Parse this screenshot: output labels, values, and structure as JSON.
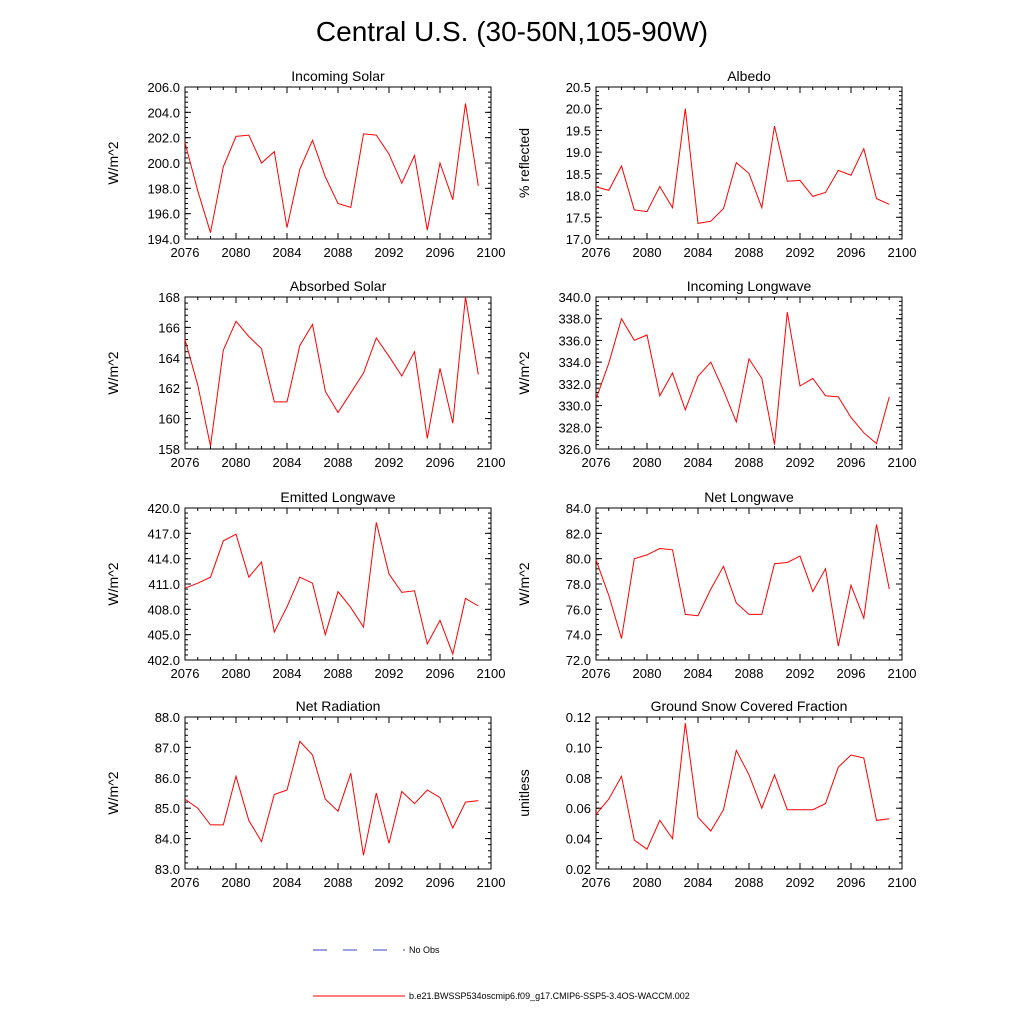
{
  "title": "Central U.S. (30-50N,105-90W)",
  "colors": {
    "series": "#ff0000",
    "obs": "#3344cc",
    "axis": "#000000"
  },
  "legend": {
    "obs_label": "No Obs",
    "model_label": "b.e21.BWSSP534oscmip6.f09_g17.CMIP6-SSP5-3.4OS-WACCM.002"
  },
  "chart_data": [
    {
      "type": "line",
      "title": "Incoming Solar",
      "xlabel": "",
      "ylabel": "W/m^2",
      "xlim": [
        2076,
        2100
      ],
      "ylim": [
        194,
        206
      ],
      "x_ticks": [
        2076,
        2080,
        2084,
        2088,
        2092,
        2096,
        2100
      ],
      "x_tick_labels": [
        "2076",
        "2080",
        "2084",
        "2088",
        "2092",
        "2096",
        "2100"
      ],
      "y_ticks": [
        194,
        196,
        198,
        200,
        202,
        204,
        206
      ],
      "y_tick_labels": [
        "194.0",
        "196.0",
        "198.0",
        "200.0",
        "202.0",
        "204.0",
        "206.0"
      ],
      "y_minor_step": 0.4,
      "series": [
        {
          "name": "b.e21.BWSSP534oscmip6.f09_g17.CMIP6-SSP5-3.4OS-WACCM.002",
          "x": [
            2076,
            2077,
            2078,
            2079,
            2080,
            2081,
            2082,
            2083,
            2084,
            2085,
            2086,
            2087,
            2088,
            2089,
            2090,
            2091,
            2092,
            2093,
            2094,
            2095,
            2096,
            2097,
            2098,
            2099
          ],
          "values": [
            201.6,
            197.8,
            194.5,
            199.7,
            202.1,
            202.2,
            200.0,
            200.9,
            194.9,
            199.5,
            201.8,
            198.9,
            196.8,
            196.5,
            202.3,
            202.2,
            200.7,
            198.4,
            200.6,
            194.7,
            200.0,
            197.1,
            204.7,
            198.2
          ]
        }
      ]
    },
    {
      "type": "line",
      "title": "Albedo",
      "xlabel": "",
      "ylabel": "% reflected",
      "xlim": [
        2076,
        2100
      ],
      "ylim": [
        17.0,
        20.5
      ],
      "x_ticks": [
        2076,
        2080,
        2084,
        2088,
        2092,
        2096,
        2100
      ],
      "x_tick_labels": [
        "2076",
        "2080",
        "2084",
        "2088",
        "2092",
        "2096",
        "2100"
      ],
      "y_ticks": [
        17.0,
        17.5,
        18.0,
        18.5,
        19.0,
        19.5,
        20.0,
        20.5
      ],
      "y_tick_labels": [
        "17.0",
        "17.5",
        "18.0",
        "18.5",
        "19.0",
        "19.5",
        "20.0",
        "20.5"
      ],
      "y_minor_step": 0.1,
      "series": [
        {
          "name": "b.e21.BWSSP534oscmip6.f09_g17.CMIP6-SSP5-3.4OS-WACCM.002",
          "x": [
            2076,
            2077,
            2078,
            2079,
            2080,
            2081,
            2082,
            2083,
            2084,
            2085,
            2086,
            2087,
            2088,
            2089,
            2090,
            2091,
            2092,
            2093,
            2094,
            2095,
            2096,
            2097,
            2098,
            2099
          ],
          "values": [
            18.2,
            18.12,
            18.68,
            17.67,
            17.63,
            18.21,
            17.72,
            20.0,
            17.36,
            17.41,
            17.7,
            18.76,
            18.51,
            17.72,
            19.6,
            18.33,
            18.35,
            17.98,
            18.07,
            18.58,
            18.47,
            19.08,
            17.93,
            17.8
          ]
        }
      ]
    },
    {
      "type": "line",
      "title": "Absorbed Solar",
      "xlabel": "",
      "ylabel": "W/m^2",
      "xlim": [
        2076,
        2100
      ],
      "ylim": [
        158,
        168
      ],
      "x_ticks": [
        2076,
        2080,
        2084,
        2088,
        2092,
        2096,
        2100
      ],
      "x_tick_labels": [
        "2076",
        "2080",
        "2084",
        "2088",
        "2092",
        "2096",
        "2100"
      ],
      "y_ticks": [
        158,
        160,
        162,
        164,
        166,
        168
      ],
      "y_tick_labels": [
        "158",
        "160",
        "162",
        "164",
        "166",
        "168"
      ],
      "y_minor_step": 0.4,
      "series": [
        {
          "name": "b.e21.BWSSP534oscmip6.f09_g17.CMIP6-SSP5-3.4OS-WACCM.002",
          "x": [
            2076,
            2077,
            2078,
            2079,
            2080,
            2081,
            2082,
            2083,
            2084,
            2085,
            2086,
            2087,
            2088,
            2089,
            2090,
            2091,
            2092,
            2093,
            2094,
            2095,
            2096,
            2097,
            2098,
            2099
          ],
          "values": [
            165.2,
            162.2,
            158.2,
            164.5,
            166.4,
            165.4,
            164.6,
            161.1,
            161.1,
            164.8,
            166.2,
            161.8,
            160.4,
            161.7,
            163.0,
            165.3,
            164.1,
            162.8,
            164.4,
            158.7,
            163.3,
            159.7,
            168.0,
            162.9
          ]
        }
      ]
    },
    {
      "type": "line",
      "title": "Incoming Longwave",
      "xlabel": "",
      "ylabel": "W/m^2",
      "xlim": [
        2076,
        2100
      ],
      "ylim": [
        326,
        340
      ],
      "x_ticks": [
        2076,
        2080,
        2084,
        2088,
        2092,
        2096,
        2100
      ],
      "x_tick_labels": [
        "2076",
        "2080",
        "2084",
        "2088",
        "2092",
        "2096",
        "2100"
      ],
      "y_ticks": [
        326,
        328,
        330,
        332,
        334,
        336,
        338,
        340
      ],
      "y_tick_labels": [
        "326.0",
        "328.0",
        "330.0",
        "332.0",
        "334.0",
        "336.0",
        "338.0",
        "340.0"
      ],
      "y_minor_step": 0.4,
      "series": [
        {
          "name": "b.e21.BWSSP534oscmip6.f09_g17.CMIP6-SSP5-3.4OS-WACCM.002",
          "x": [
            2076,
            2077,
            2078,
            2079,
            2080,
            2081,
            2082,
            2083,
            2084,
            2085,
            2086,
            2087,
            2088,
            2089,
            2090,
            2091,
            2092,
            2093,
            2094,
            2095,
            2096,
            2097,
            2098,
            2099
          ],
          "values": [
            330.6,
            333.9,
            338.0,
            336.0,
            336.5,
            330.9,
            333.0,
            329.6,
            332.7,
            334.0,
            331.4,
            328.5,
            334.3,
            332.5,
            326.4,
            338.6,
            331.8,
            332.5,
            330.9,
            330.8,
            328.9,
            327.5,
            326.5,
            330.8
          ]
        }
      ]
    },
    {
      "type": "line",
      "title": "Emitted Longwave",
      "xlabel": "",
      "ylabel": "W/m^2",
      "xlim": [
        2076,
        2100
      ],
      "ylim": [
        402,
        420
      ],
      "x_ticks": [
        2076,
        2080,
        2084,
        2088,
        2092,
        2096,
        2100
      ],
      "x_tick_labels": [
        "2076",
        "2080",
        "2084",
        "2088",
        "2092",
        "2096",
        "2100"
      ],
      "y_ticks": [
        402,
        405,
        408,
        411,
        414,
        417,
        420
      ],
      "y_tick_labels": [
        "402.0",
        "405.0",
        "408.0",
        "411.0",
        "414.0",
        "417.0",
        "420.0"
      ],
      "y_minor_step": 0.6,
      "series": [
        {
          "name": "b.e21.BWSSP534oscmip6.f09_g17.CMIP6-SSP5-3.4OS-WACCM.002",
          "x": [
            2076,
            2077,
            2078,
            2079,
            2080,
            2081,
            2082,
            2083,
            2084,
            2085,
            2086,
            2087,
            2088,
            2089,
            2090,
            2091,
            2092,
            2093,
            2094,
            2095,
            2096,
            2097,
            2098,
            2099
          ],
          "values": [
            410.5,
            411.1,
            411.8,
            416.1,
            416.9,
            411.8,
            413.6,
            405.3,
            408.3,
            411.8,
            411.1,
            405.0,
            410.1,
            408.2,
            405.9,
            418.3,
            412.2,
            410.0,
            410.2,
            403.9,
            406.7,
            402.7,
            409.3,
            408.4
          ]
        }
      ]
    },
    {
      "type": "line",
      "title": "Net Longwave",
      "xlabel": "",
      "ylabel": "W/m^2",
      "xlim": [
        2076,
        2100
      ],
      "ylim": [
        72,
        84
      ],
      "x_ticks": [
        2076,
        2080,
        2084,
        2088,
        2092,
        2096,
        2100
      ],
      "x_tick_labels": [
        "2076",
        "2080",
        "2084",
        "2088",
        "2092",
        "2096",
        "2100"
      ],
      "y_ticks": [
        72,
        74,
        76,
        78,
        80,
        82,
        84
      ],
      "y_tick_labels": [
        "72.0",
        "74.0",
        "76.0",
        "78.0",
        "80.0",
        "82.0",
        "84.0"
      ],
      "y_minor_step": 0.4,
      "series": [
        {
          "name": "b.e21.BWSSP534oscmip6.f09_g17.CMIP6-SSP5-3.4OS-WACCM.002",
          "x": [
            2076,
            2077,
            2078,
            2079,
            2080,
            2081,
            2082,
            2083,
            2084,
            2085,
            2086,
            2087,
            2088,
            2089,
            2090,
            2091,
            2092,
            2093,
            2094,
            2095,
            2096,
            2097,
            2098,
            2099
          ],
          "values": [
            79.9,
            77.1,
            73.7,
            80.0,
            80.3,
            80.8,
            80.7,
            75.6,
            75.5,
            77.6,
            79.4,
            76.5,
            75.6,
            75.6,
            79.6,
            79.7,
            80.2,
            77.4,
            79.2,
            73.1,
            77.9,
            75.3,
            82.7,
            77.6
          ]
        }
      ]
    },
    {
      "type": "line",
      "title": "Net Radiation",
      "xlabel": "",
      "ylabel": "W/m^2",
      "xlim": [
        2076,
        2100
      ],
      "ylim": [
        83,
        88
      ],
      "x_ticks": [
        2076,
        2080,
        2084,
        2088,
        2092,
        2096,
        2100
      ],
      "x_tick_labels": [
        "2076",
        "2080",
        "2084",
        "2088",
        "2092",
        "2096",
        "2100"
      ],
      "y_ticks": [
        83,
        84,
        85,
        86,
        87,
        88
      ],
      "y_tick_labels": [
        "83.0",
        "84.0",
        "85.0",
        "86.0",
        "87.0",
        "88.0"
      ],
      "y_minor_step": 0.2,
      "series": [
        {
          "name": "b.e21.BWSSP534oscmip6.f09_g17.CMIP6-SSP5-3.4OS-WACCM.002",
          "x": [
            2076,
            2077,
            2078,
            2079,
            2080,
            2081,
            2082,
            2083,
            2084,
            2085,
            2086,
            2087,
            2088,
            2089,
            2090,
            2091,
            2092,
            2093,
            2094,
            2095,
            2096,
            2097,
            2098,
            2099
          ],
          "values": [
            85.3,
            85.0,
            84.45,
            84.45,
            86.05,
            84.6,
            83.9,
            85.45,
            85.6,
            87.2,
            86.75,
            85.3,
            84.9,
            86.15,
            83.45,
            85.5,
            83.85,
            85.55,
            85.15,
            85.6,
            85.35,
            84.35,
            85.2,
            85.25
          ]
        }
      ]
    },
    {
      "type": "line",
      "title": "Ground Snow Covered Fraction",
      "xlabel": "",
      "ylabel": "unitless",
      "xlim": [
        2076,
        2100
      ],
      "ylim": [
        0.02,
        0.12
      ],
      "x_ticks": [
        2076,
        2080,
        2084,
        2088,
        2092,
        2096,
        2100
      ],
      "x_tick_labels": [
        "2076",
        "2080",
        "2084",
        "2088",
        "2092",
        "2096",
        "2100"
      ],
      "y_ticks": [
        0.02,
        0.04,
        0.06,
        0.08,
        0.1,
        0.12
      ],
      "y_tick_labels": [
        "0.02",
        "0.04",
        "0.06",
        "0.08",
        "0.10",
        "0.12"
      ],
      "y_minor_step": 0.004,
      "series": [
        {
          "name": "b.e21.BWSSP534oscmip6.f09_g17.CMIP6-SSP5-3.4OS-WACCM.002",
          "x": [
            2076,
            2077,
            2078,
            2079,
            2080,
            2081,
            2082,
            2083,
            2084,
            2085,
            2086,
            2087,
            2088,
            2089,
            2090,
            2091,
            2092,
            2093,
            2094,
            2095,
            2096,
            2097,
            2098,
            2099
          ],
          "values": [
            0.056,
            0.066,
            0.081,
            0.039,
            0.033,
            0.052,
            0.04,
            0.116,
            0.054,
            0.045,
            0.059,
            0.098,
            0.082,
            0.06,
            0.082,
            0.059,
            0.059,
            0.059,
            0.063,
            0.087,
            0.095,
            0.093,
            0.052,
            0.053
          ]
        }
      ]
    }
  ]
}
